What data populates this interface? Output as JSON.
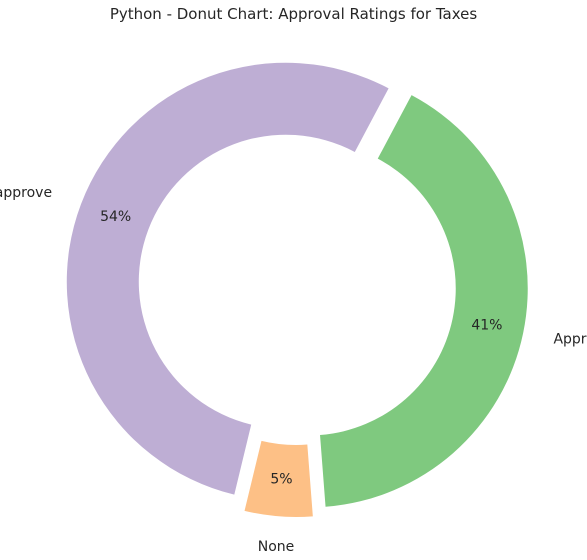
{
  "chart_data": {
    "type": "pie",
    "variant": "donut",
    "title": "Python - Donut Chart: Approval Ratings for Taxes",
    "labels": [
      "Approve",
      "None",
      "Disapprove"
    ],
    "values": [
      41,
      5,
      54
    ],
    "percent_labels": [
      "41%",
      "5%",
      "54%"
    ],
    "colors": [
      "#7fc97f",
      "#fdc086",
      "#beaed4"
    ],
    "exploded": [
      true,
      true,
      true
    ],
    "legend": "none",
    "direction": "clockwise"
  }
}
